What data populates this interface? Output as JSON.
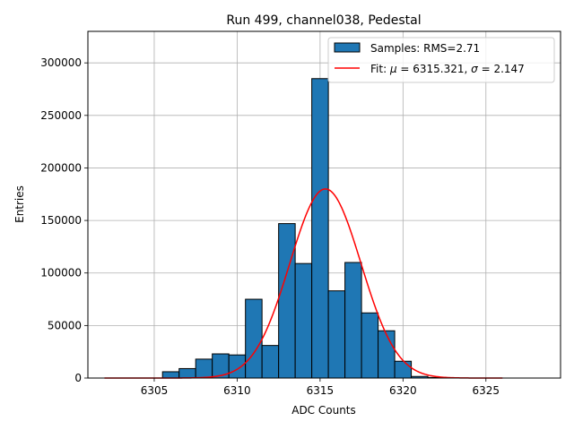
{
  "chart_data": {
    "type": "bar",
    "title": "Run 499, channel038, Pedestal",
    "xlabel": "ADC Counts",
    "ylabel": "Entries",
    "xlim": [
      6301.0,
      6329.5
    ],
    "ylim": [
      0,
      330000
    ],
    "xticks": [
      6305,
      6310,
      6315,
      6320,
      6325
    ],
    "yticks": [
      0,
      50000,
      100000,
      150000,
      200000,
      250000,
      300000
    ],
    "grid": true,
    "legend_position": "top-right",
    "bin_width": 1,
    "bins": [
      {
        "x": 6302,
        "value": 0
      },
      {
        "x": 6303,
        "value": 0
      },
      {
        "x": 6304,
        "value": 0
      },
      {
        "x": 6305,
        "value": 0
      },
      {
        "x": 6306,
        "value": 6000
      },
      {
        "x": 6307,
        "value": 9000
      },
      {
        "x": 6308,
        "value": 18000
      },
      {
        "x": 6309,
        "value": 23000
      },
      {
        "x": 6310,
        "value": 22000
      },
      {
        "x": 6311,
        "value": 75000
      },
      {
        "x": 6312,
        "value": 31000
      },
      {
        "x": 6313,
        "value": 147000
      },
      {
        "x": 6314,
        "value": 109000
      },
      {
        "x": 6315,
        "value": 285000
      },
      {
        "x": 6316,
        "value": 83000
      },
      {
        "x": 6317,
        "value": 110000
      },
      {
        "x": 6318,
        "value": 62000
      },
      {
        "x": 6319,
        "value": 45000
      },
      {
        "x": 6320,
        "value": 16000
      },
      {
        "x": 6321,
        "value": 1500
      },
      {
        "x": 6322,
        "value": 500
      },
      {
        "x": 6323,
        "value": 0
      },
      {
        "x": 6324,
        "value": 0
      },
      {
        "x": 6325,
        "value": 0
      },
      {
        "x": 6326,
        "value": 0
      },
      {
        "x": 6327,
        "value": 0
      },
      {
        "x": 6328,
        "value": 0
      }
    ],
    "fit": {
      "mu": 6315.321,
      "sigma": 2.147,
      "amplitude": 180000,
      "x_range": [
        6302,
        6326
      ]
    },
    "bar_color": "#1f77b4",
    "fit_color": "#ff0000",
    "legend": {
      "samples_label": "Samples: RMS=2.71",
      "fit_prefix": "Fit: ",
      "mu_symbol": "μ",
      "mu_text": " = 6315.321, ",
      "sigma_symbol": "σ",
      "sigma_text": " = 2.147"
    }
  }
}
